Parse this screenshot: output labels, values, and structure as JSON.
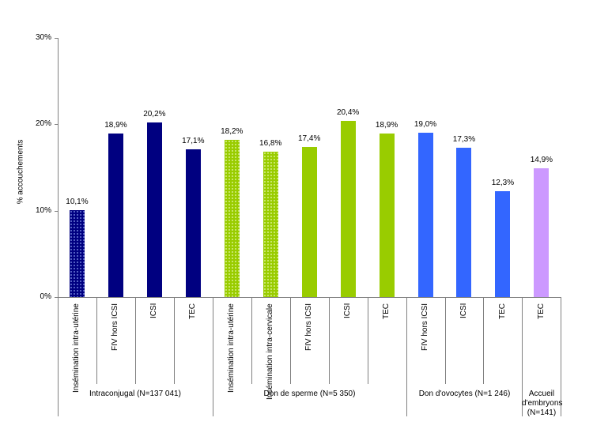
{
  "chart_data": {
    "type": "bar",
    "title": "",
    "xlabel": "",
    "ylabel": "% accouchements",
    "ylim": [
      0,
      30
    ],
    "yticks": [
      "0%",
      "10%",
      "20%",
      "30%"
    ],
    "grid": false,
    "legend": null,
    "categories": [
      "Insémination intra-utérine",
      "FIV hors ICSI",
      "ICSI",
      "TEC",
      "Insémination intra-utérine",
      "Insémination intra-cervicale",
      "FIV hors ICSI",
      "ICSI",
      "TEC",
      "FIV hors ICSI",
      "ICSI",
      "TEC",
      "TEC"
    ],
    "values": [
      10.1,
      18.9,
      20.2,
      17.1,
      18.2,
      16.8,
      17.4,
      20.4,
      18.9,
      19.0,
      17.3,
      12.3,
      14.9
    ],
    "value_labels": [
      "10,1%",
      "18,9%",
      "20,2%",
      "17,1%",
      "18,2%",
      "16,8%",
      "17,4%",
      "20,4%",
      "18,9%",
      "19,0%",
      "17,3%",
      "12,3%",
      "14,9%"
    ],
    "groups": [
      {
        "label": "Intraconjugal (N=137 041)",
        "start": 0,
        "count": 4,
        "color": "#000080"
      },
      {
        "label": "Don de sperme (N=5 350)",
        "start": 4,
        "count": 5,
        "color": "#99cc00"
      },
      {
        "label": "Don d'ovocytes (N=1 246)",
        "start": 9,
        "count": 3,
        "color": "#3366ff"
      },
      {
        "label": "Accueil d'embryons (N=141)",
        "start": 12,
        "count": 1,
        "color": "#cc99ff"
      }
    ],
    "patterns": [
      "dotted",
      "solid",
      "solid",
      "solid",
      "dotted",
      "dotted",
      "solid",
      "solid",
      "solid",
      "solid",
      "solid",
      "solid",
      "solid"
    ]
  },
  "axis": {
    "ylabel": "% accouchements",
    "ticks": [
      "0%",
      "10%",
      "20%",
      "30%"
    ]
  },
  "groups_display": {
    "g0": "Intraconjugal (N=137 041)",
    "g1": "Don de sperme (N=5 350)",
    "g2": "Don d'ovocytes (N=1 246)",
    "g3_l1": "Accueil",
    "g3_l2": "d'embryons",
    "g3_l3": "(N=141)"
  }
}
